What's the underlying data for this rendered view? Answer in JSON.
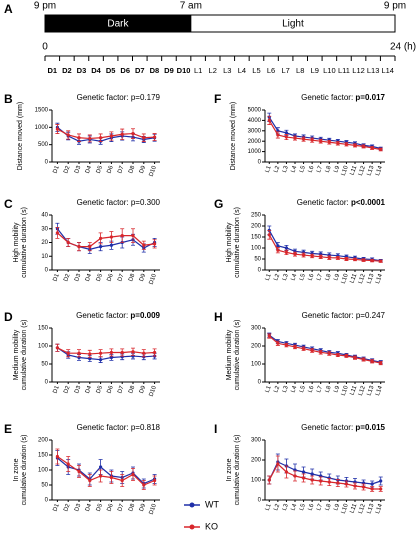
{
  "timeline": {
    "panel": "A",
    "times": [
      {
        "value": 0,
        "label": "9 pm"
      },
      {
        "value": 10,
        "label": "7 am"
      },
      {
        "value": 24,
        "label": "9 pm"
      }
    ],
    "phases": [
      {
        "name": "Dark",
        "start": 0,
        "end": 10,
        "color": "#000000"
      },
      {
        "name": "Light",
        "start": 10,
        "end": 24,
        "color": "#ffffff"
      }
    ],
    "hours": [
      0,
      {
        "value": 24,
        "label": "24 (h)"
      }
    ],
    "days": [
      "D1",
      "D2",
      "D3",
      "D4",
      "D5",
      "D6",
      "D7",
      "D8",
      "D9",
      "D10",
      "L1",
      "L2",
      "L3",
      "L4",
      "L5",
      "L6",
      "L7",
      "L8",
      "L9",
      "L10",
      "L11",
      "L12",
      "L13",
      "L14"
    ]
  },
  "legend": [
    {
      "name": "WT",
      "color": "#1f2fa8"
    },
    {
      "name": "KO",
      "color": "#d8262b"
    }
  ],
  "chart_data": [
    {
      "type": "line",
      "panel": "B",
      "annotation": "Genetic factor: ",
      "p_text": "p=0.179",
      "p_bold": false,
      "ylabel": [
        "Distance moved (mm)"
      ],
      "categories": [
        "D1",
        "D2",
        "D3",
        "D4",
        "D5",
        "D6",
        "D7",
        "D8",
        "D9",
        "D10"
      ],
      "ylim": [
        0,
        1500
      ],
      "yticks": [
        0,
        500,
        1000,
        1500
      ],
      "series": [
        {
          "color": "#1f2fa8",
          "values": [
            1000,
            750,
            600,
            650,
            600,
            700,
            750,
            720,
            650,
            700
          ],
          "errors": [
            120,
            110,
            90,
            100,
            90,
            110,
            120,
            110,
            90,
            100
          ]
        },
        {
          "color": "#d8262b",
          "values": [
            950,
            780,
            700,
            680,
            700,
            750,
            800,
            820,
            700,
            720
          ],
          "errors": [
            130,
            120,
            110,
            100,
            110,
            120,
            150,
            140,
            110,
            100
          ]
        }
      ]
    },
    {
      "type": "line",
      "panel": "F",
      "annotation": "Genetic factor: ",
      "p_text": "p=0.017",
      "p_bold": true,
      "ylabel": [
        "Distance moved (mm)"
      ],
      "categories": [
        "L1",
        "L2",
        "L3",
        "L4",
        "L5",
        "L6",
        "L7",
        "L8",
        "L9",
        "L10",
        "L11",
        "L12",
        "L13",
        "L14"
      ],
      "ylim": [
        0,
        5000
      ],
      "yticks": [
        0,
        1000,
        2000,
        3000,
        4000,
        5000
      ],
      "series": [
        {
          "color": "#1f2fa8",
          "values": [
            4300,
            3000,
            2800,
            2500,
            2400,
            2300,
            2200,
            2100,
            2000,
            1900,
            1800,
            1600,
            1500,
            1300
          ],
          "errors": [
            400,
            300,
            250,
            200,
            200,
            200,
            180,
            180,
            170,
            160,
            150,
            150,
            140,
            130
          ]
        },
        {
          "color": "#d8262b",
          "values": [
            4000,
            2600,
            2400,
            2300,
            2200,
            2100,
            2000,
            1900,
            1800,
            1700,
            1600,
            1500,
            1350,
            1200
          ],
          "errors": [
            400,
            300,
            250,
            200,
            200,
            200,
            180,
            180,
            170,
            160,
            150,
            150,
            140,
            130
          ]
        }
      ]
    },
    {
      "type": "line",
      "panel": "C",
      "annotation": "Genetic factor: ",
      "p_text": "p=0.300",
      "p_bold": false,
      "ylabel": [
        "High mobility",
        "cumulative duration (s)"
      ],
      "categories": [
        "D1",
        "D2",
        "D3",
        "D4",
        "D5",
        "D6",
        "D7",
        "D8",
        "D9",
        "D10"
      ],
      "ylim": [
        0,
        40
      ],
      "yticks": [
        0,
        10,
        20,
        30,
        40
      ],
      "series": [
        {
          "color": "#1f2fa8",
          "values": [
            30,
            20,
            17,
            15,
            17,
            18,
            20,
            22,
            16,
            20
          ],
          "errors": [
            4,
            3,
            3,
            3,
            3,
            3,
            4,
            4,
            3,
            3
          ]
        },
        {
          "color": "#d8262b",
          "values": [
            27,
            20,
            17,
            17,
            23,
            24,
            25,
            25,
            18,
            19
          ],
          "errors": [
            4,
            3,
            3,
            3,
            4,
            4,
            5,
            5,
            3,
            3
          ]
        }
      ]
    },
    {
      "type": "line",
      "panel": "G",
      "annotation": "Genetic factor: ",
      "p_text": "p<0.0001",
      "p_bold": true,
      "ylabel": [
        "High mobility",
        "cumulative duration (s)"
      ],
      "categories": [
        "L1",
        "L2",
        "L3",
        "L4",
        "L5",
        "L6",
        "L7",
        "L8",
        "L9",
        "L10",
        "L11",
        "L12",
        "L13",
        "L14"
      ],
      "ylim": [
        0,
        250
      ],
      "yticks": [
        0,
        50,
        100,
        150,
        200,
        250
      ],
      "series": [
        {
          "color": "#1f2fa8",
          "values": [
            180,
            110,
            100,
            85,
            80,
            75,
            72,
            68,
            65,
            60,
            55,
            50,
            48,
            42
          ],
          "errors": [
            20,
            15,
            12,
            10,
            10,
            10,
            10,
            10,
            9,
            8,
            8,
            7,
            7,
            6
          ]
        },
        {
          "color": "#d8262b",
          "values": [
            160,
            90,
            80,
            72,
            68,
            64,
            60,
            56,
            55,
            50,
            48,
            45,
            43,
            40
          ],
          "errors": [
            20,
            12,
            10,
            9,
            9,
            8,
            8,
            8,
            7,
            7,
            6,
            6,
            6,
            5
          ]
        }
      ]
    },
    {
      "type": "line",
      "panel": "D",
      "annotation": "Genetic factor: ",
      "p_text": "p=0.009",
      "p_bold": true,
      "ylabel": [
        "Medium mobility",
        "cumulative duration (s)"
      ],
      "categories": [
        "D1",
        "D2",
        "D3",
        "D4",
        "D5",
        "D6",
        "D7",
        "D8",
        "D9",
        "D10"
      ],
      "ylim": [
        0,
        150
      ],
      "yticks": [
        0,
        50,
        100,
        150
      ],
      "series": [
        {
          "color": "#1f2fa8",
          "values": [
            95,
            75,
            68,
            65,
            62,
            68,
            70,
            72,
            70,
            72
          ],
          "errors": [
            10,
            9,
            8,
            8,
            8,
            8,
            8,
            8,
            8,
            8
          ]
        },
        {
          "color": "#d8262b",
          "values": [
            95,
            80,
            80,
            78,
            80,
            82,
            82,
            84,
            80,
            82
          ],
          "errors": [
            10,
            10,
            10,
            10,
            10,
            10,
            10,
            10,
            10,
            10
          ]
        }
      ]
    },
    {
      "type": "line",
      "panel": "H",
      "annotation": "Genetic factor: ",
      "p_text": "p=0.247",
      "p_bold": false,
      "ylabel": [
        "Medium mobility",
        "cumulative duration (s)"
      ],
      "categories": [
        "L1",
        "L2",
        "L3",
        "L4",
        "L5",
        "L6",
        "L7",
        "L8",
        "L9",
        "L10",
        "L11",
        "L12",
        "L13",
        "L14"
      ],
      "ylim": [
        0,
        300
      ],
      "yticks": [
        0,
        100,
        200,
        300
      ],
      "series": [
        {
          "color": "#1f2fa8",
          "values": [
            260,
            225,
            215,
            205,
            195,
            185,
            175,
            165,
            160,
            150,
            140,
            130,
            120,
            110
          ],
          "errors": [
            12,
            12,
            10,
            10,
            10,
            10,
            10,
            10,
            9,
            9,
            9,
            9,
            9,
            9
          ]
        },
        {
          "color": "#d8262b",
          "values": [
            255,
            215,
            205,
            195,
            185,
            175,
            165,
            158,
            150,
            145,
            135,
            125,
            115,
            105
          ],
          "errors": [
            12,
            12,
            10,
            10,
            10,
            10,
            10,
            10,
            9,
            9,
            9,
            9,
            9,
            9
          ]
        }
      ]
    },
    {
      "type": "line",
      "panel": "E",
      "annotation": "Genetic factor: ",
      "p_text": "p=0.818",
      "p_bold": false,
      "ylabel": [
        "In zone",
        "cumulative duration (s)"
      ],
      "categories": [
        "D1",
        "D2",
        "D3",
        "D4",
        "D5",
        "D6",
        "D7",
        "D8",
        "D9",
        "D10"
      ],
      "ylim": [
        0,
        200
      ],
      "yticks": [
        0,
        50,
        100,
        150,
        200
      ],
      "series": [
        {
          "color": "#1f2fa8",
          "values": [
            140,
            110,
            100,
            70,
            110,
            80,
            75,
            90,
            55,
            70
          ],
          "errors": [
            25,
            25,
            20,
            20,
            25,
            20,
            20,
            20,
            15,
            15
          ]
        },
        {
          "color": "#d8262b",
          "values": [
            145,
            120,
            95,
            65,
            80,
            75,
            65,
            85,
            50,
            65
          ],
          "errors": [
            25,
            25,
            20,
            20,
            20,
            20,
            20,
            20,
            15,
            15
          ]
        }
      ]
    },
    {
      "type": "line",
      "panel": "I",
      "annotation": "Genetic factor: ",
      "p_text": "p=0.015",
      "p_bold": true,
      "ylabel": [
        "In zone",
        "cumulative duration (s)"
      ],
      "categories": [
        "L1",
        "L2",
        "L3",
        "L4",
        "L5",
        "L6",
        "L7",
        "L8",
        "L9",
        "L10",
        "L11",
        "L12",
        "L13",
        "L14"
      ],
      "ylim": [
        0,
        300
      ],
      "yticks": [
        0,
        100,
        200,
        300
      ],
      "series": [
        {
          "color": "#1f2fa8",
          "values": [
            100,
            190,
            170,
            150,
            140,
            130,
            120,
            110,
            100,
            95,
            90,
            85,
            80,
            95
          ],
          "errors": [
            20,
            40,
            35,
            30,
            25,
            25,
            20,
            20,
            20,
            18,
            18,
            15,
            15,
            20
          ]
        },
        {
          "color": "#d8262b",
          "values": [
            100,
            180,
            140,
            120,
            110,
            100,
            95,
            90,
            85,
            80,
            70,
            65,
            55,
            55
          ],
          "errors": [
            20,
            40,
            30,
            25,
            20,
            20,
            20,
            18,
            18,
            15,
            15,
            15,
            12,
            12
          ]
        }
      ]
    }
  ]
}
